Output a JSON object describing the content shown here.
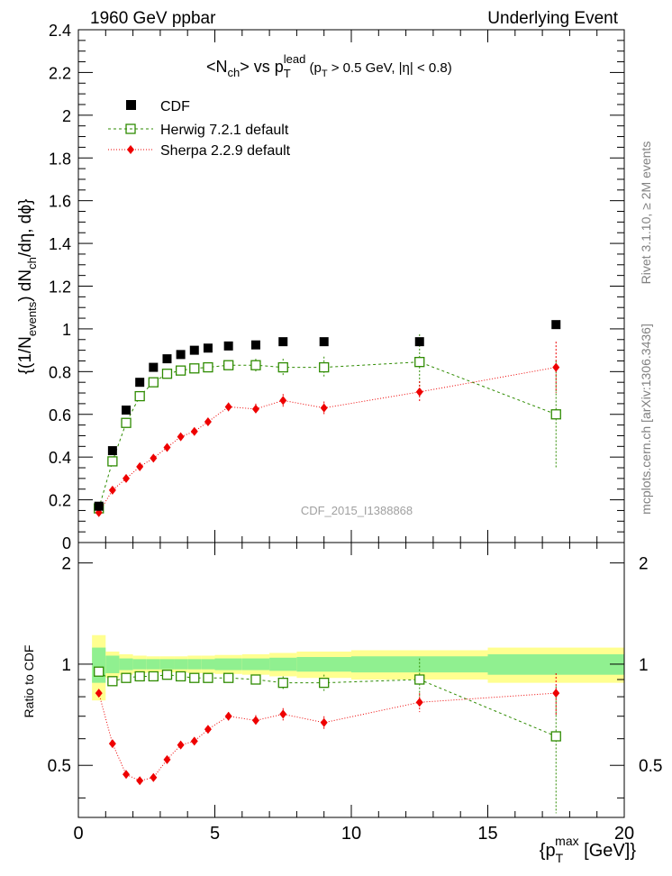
{
  "header": {
    "left": "1960 GeV ppbar",
    "right": "Underlying Event"
  },
  "side_labels": {
    "rivet": "Rivet 3.1.10, ≥ 2M events",
    "mcplots": "mcplots.cern.ch [arXiv:1306.3436]"
  },
  "watermark": "CDF_2015_I1388868",
  "title_parts": {
    "n": "<N",
    "n_sub": "ch",
    "n_close": ">",
    "vs": " vs p",
    "pt_sub": "T",
    "pt_sup": "lead",
    "cut_open": " (p",
    "cut_sub": "T",
    "cut_rest": " > 0.5 GeV, |η| < 0.8)"
  },
  "ylabel_parts": {
    "a": "{(1/N",
    "a_sub": "events",
    "b": ") dN",
    "b_sub": "ch",
    "c": "/dη, dϕ}"
  },
  "ratio_ylabel": "Ratio to CDF",
  "xlabel_parts": {
    "a": "{p",
    "a_sub": "T",
    "a_sup": "max",
    "b": " [GeV]}"
  },
  "colors": {
    "cdf": "#000000",
    "herwig": "#2e8b00",
    "sherpa": "#ee0000",
    "band_inner": "#90f090",
    "band_outer": "#ffff90"
  },
  "chart_data": [
    {
      "type": "scatter",
      "panel": "main",
      "xlim": [
        0,
        20
      ],
      "ylim": [
        0,
        2.4
      ],
      "yticks": [
        "0",
        "0.2",
        "0.4",
        "0.6",
        "0.8",
        "1",
        "1.2",
        "1.4",
        "1.6",
        "1.8",
        "2",
        "2.2",
        "2.4"
      ],
      "ytick_values": [
        0,
        0.2,
        0.4,
        0.6,
        0.8,
        1.0,
        1.2,
        1.4,
        1.6,
        1.8,
        2.0,
        2.2,
        2.4
      ],
      "legend_position": "top-left",
      "series": [
        {
          "name": "CDF",
          "x": [
            0.75,
            1.25,
            1.75,
            2.25,
            2.75,
            3.25,
            3.75,
            4.25,
            4.75,
            5.5,
            6.5,
            7.5,
            9.0,
            12.5,
            17.5
          ],
          "y": [
            0.17,
            0.43,
            0.62,
            0.75,
            0.82,
            0.86,
            0.88,
            0.9,
            0.91,
            0.92,
            0.925,
            0.94,
            0.94,
            0.94,
            1.02
          ],
          "yerr": [
            0,
            0,
            0,
            0,
            0,
            0,
            0,
            0,
            0,
            0,
            0,
            0,
            0,
            0,
            0
          ]
        },
        {
          "name": "Herwig 7.2.1 default",
          "x": [
            0.75,
            1.25,
            1.75,
            2.25,
            2.75,
            3.25,
            3.75,
            4.25,
            4.75,
            5.5,
            6.5,
            7.5,
            9.0,
            12.5,
            17.5
          ],
          "y": [
            0.16,
            0.38,
            0.56,
            0.685,
            0.75,
            0.79,
            0.805,
            0.815,
            0.82,
            0.83,
            0.83,
            0.82,
            0.82,
            0.845,
            0.6
          ],
          "yerr": [
            0.01,
            0.01,
            0.01,
            0.01,
            0.01,
            0.012,
            0.012,
            0.012,
            0.015,
            0.02,
            0.03,
            0.04,
            0.05,
            0.13,
            0.25
          ]
        },
        {
          "name": "Sherpa 2.2.9 default",
          "x": [
            0.75,
            1.25,
            1.75,
            2.25,
            2.75,
            3.25,
            3.75,
            4.25,
            4.75,
            5.5,
            6.5,
            7.5,
            9.0,
            12.5,
            17.5
          ],
          "y": [
            0.14,
            0.245,
            0.3,
            0.355,
            0.395,
            0.445,
            0.495,
            0.52,
            0.565,
            0.635,
            0.625,
            0.665,
            0.63,
            0.705,
            0.82
          ],
          "yerr": [
            0.008,
            0.01,
            0.01,
            0.01,
            0.012,
            0.012,
            0.015,
            0.015,
            0.015,
            0.02,
            0.025,
            0.03,
            0.03,
            0.05,
            0.12
          ]
        }
      ]
    },
    {
      "type": "scatter",
      "panel": "ratio",
      "xlim": [
        0,
        20
      ],
      "ylim": [
        0.35,
        2.3
      ],
      "yscale": "log",
      "xticks": [
        "0",
        "5",
        "10",
        "15",
        "20"
      ],
      "xtick_values": [
        0,
        5,
        10,
        15,
        20
      ],
      "yticks": [
        "0.5",
        "1",
        "2"
      ],
      "ytick_values": [
        0.5,
        1,
        2
      ],
      "band_bins": [
        0.5,
        1.0,
        1.5,
        2.0,
        2.5,
        3.0,
        3.5,
        4.0,
        4.5,
        5.0,
        6.0,
        7.0,
        8.0,
        10.0,
        15.0,
        20.0
      ],
      "band_inner": [
        0.12,
        0.06,
        0.04,
        0.035,
        0.035,
        0.035,
        0.035,
        0.035,
        0.035,
        0.04,
        0.04,
        0.045,
        0.05,
        0.055,
        0.07
      ],
      "band_outer": [
        0.22,
        0.09,
        0.07,
        0.06,
        0.055,
        0.055,
        0.055,
        0.06,
        0.06,
        0.065,
        0.07,
        0.08,
        0.09,
        0.1,
        0.12
      ],
      "series": [
        {
          "name": "Herwig 7.2.1 default",
          "x": [
            0.75,
            1.25,
            1.75,
            2.25,
            2.75,
            3.25,
            3.75,
            4.25,
            4.75,
            5.5,
            6.5,
            7.5,
            9.0,
            12.5,
            17.5
          ],
          "y": [
            0.95,
            0.89,
            0.91,
            0.92,
            0.92,
            0.93,
            0.92,
            0.91,
            0.91,
            0.91,
            0.9,
            0.88,
            0.88,
            0.9,
            0.61
          ],
          "yerr": [
            0.01,
            0.01,
            0.01,
            0.01,
            0.01,
            0.012,
            0.012,
            0.012,
            0.015,
            0.02,
            0.03,
            0.04,
            0.05,
            0.14,
            0.25
          ]
        },
        {
          "name": "Sherpa 2.2.9 default",
          "x": [
            0.75,
            1.25,
            1.75,
            2.25,
            2.75,
            3.25,
            3.75,
            4.25,
            4.75,
            5.5,
            6.5,
            7.5,
            9.0,
            12.5,
            17.5
          ],
          "y": [
            0.82,
            0.58,
            0.47,
            0.45,
            0.46,
            0.52,
            0.575,
            0.59,
            0.64,
            0.7,
            0.68,
            0.71,
            0.67,
            0.77,
            0.82
          ],
          "yerr": [
            0.01,
            0.01,
            0.01,
            0.01,
            0.01,
            0.012,
            0.012,
            0.012,
            0.015,
            0.02,
            0.025,
            0.03,
            0.03,
            0.05,
            0.12
          ]
        }
      ]
    }
  ]
}
